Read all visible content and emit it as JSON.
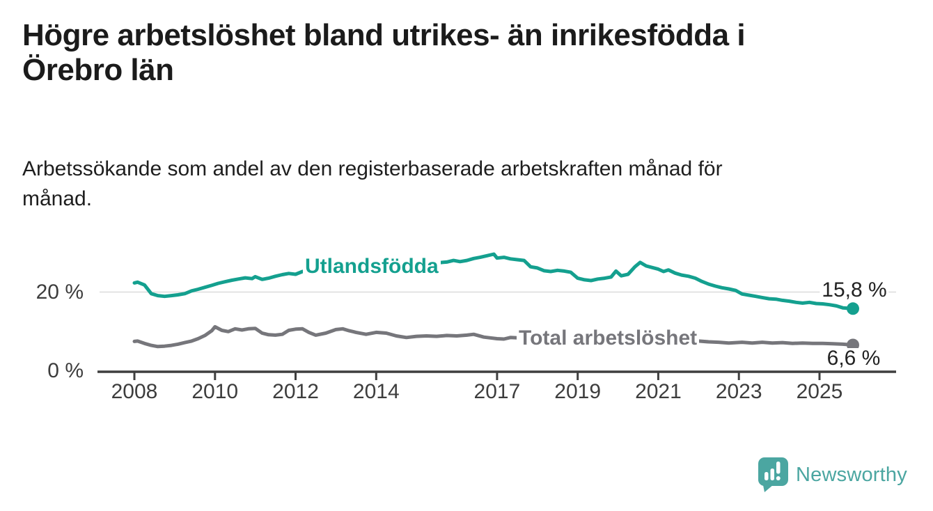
{
  "header": {
    "title": "Högre arbetslöshet bland utrikes- än inrikesfödda i Örebro län",
    "title_lines": [
      "Högre arbetslöshet bland utrikes- än inrikesfödda i",
      "Örebro län"
    ],
    "subtitle": "Arbetssökande som andel av den registerbaserade arbetskraften månad för månad.",
    "subtitle_lines": [
      "Arbetssökande som andel av den registerbaserade arbetskraften månad för",
      "månad."
    ]
  },
  "colors": {
    "accent_teal": "#14A08F",
    "series_gray": "#76767B",
    "axis": "#3F3F3F",
    "grid": "#DADADA",
    "text_dark": "#1B1B1B",
    "tick_text": "#3D3D3D",
    "brand_teal": "#4BA6A1"
  },
  "chart_data": {
    "type": "line",
    "title": "Högre arbetslöshet bland utrikes- än inrikesfödda i Örebro län",
    "subtitle": "Arbetssökande som andel av den registerbaserade arbetskraften månad för månad.",
    "unit": "%",
    "grid": "single horizontal gridline at 20 %",
    "legend_position": "inline labels on lines",
    "x_range": [
      2008,
      2025.9
    ],
    "y_range": [
      0,
      31
    ],
    "x_axis": {
      "ticks": [
        {
          "value": 2008,
          "label": "2008"
        },
        {
          "value": 2010,
          "label": "2010"
        },
        {
          "value": 2012,
          "label": "2012"
        },
        {
          "value": 2014,
          "label": "2014"
        },
        {
          "value": 2017,
          "label": "2017"
        },
        {
          "value": 2019,
          "label": "2019"
        },
        {
          "value": 2021,
          "label": "2021"
        },
        {
          "value": 2023,
          "label": "2023"
        },
        {
          "value": 2025,
          "label": "2025"
        }
      ]
    },
    "y_axis": {
      "ticks": [
        {
          "value": 0,
          "label": "0 %",
          "grid": false
        },
        {
          "value": 20,
          "label": "20 %",
          "grid": true
        }
      ]
    },
    "series": [
      {
        "id": "utlandsfodda",
        "name": "Utlandsfödda",
        "color": "#14A08F",
        "end_label": "15,8 %",
        "end_value": 15.8,
        "points": [
          [
            2008.0,
            22.3
          ],
          [
            2008.08,
            22.5
          ],
          [
            2008.25,
            21.8
          ],
          [
            2008.42,
            19.6
          ],
          [
            2008.58,
            19.1
          ],
          [
            2008.75,
            18.9
          ],
          [
            2008.92,
            19.1
          ],
          [
            2009.08,
            19.3
          ],
          [
            2009.25,
            19.6
          ],
          [
            2009.42,
            20.3
          ],
          [
            2009.58,
            20.7
          ],
          [
            2009.75,
            21.2
          ],
          [
            2009.92,
            21.7
          ],
          [
            2010.08,
            22.2
          ],
          [
            2010.25,
            22.6
          ],
          [
            2010.42,
            23.0
          ],
          [
            2010.58,
            23.3
          ],
          [
            2010.75,
            23.6
          ],
          [
            2010.92,
            23.4
          ],
          [
            2011.0,
            23.9
          ],
          [
            2011.17,
            23.2
          ],
          [
            2011.33,
            23.5
          ],
          [
            2011.5,
            24.0
          ],
          [
            2011.67,
            24.4
          ],
          [
            2011.83,
            24.7
          ],
          [
            2012.0,
            24.5
          ],
          [
            2012.17,
            25.2
          ],
          [
            2012.33,
            25.6
          ],
          [
            2012.5,
            25.9
          ],
          [
            2012.75,
            26.1
          ],
          [
            2013.0,
            26.3
          ],
          [
            2013.25,
            26.1
          ],
          [
            2013.5,
            26.5
          ],
          [
            2013.75,
            26.7
          ],
          [
            2014.0,
            26.9
          ],
          [
            2014.25,
            26.7
          ],
          [
            2014.5,
            27.0
          ],
          [
            2014.75,
            27.1
          ],
          [
            2015.0,
            27.0
          ],
          [
            2015.25,
            27.2
          ],
          [
            2015.5,
            27.4
          ],
          [
            2015.75,
            27.6
          ],
          [
            2015.92,
            28.0
          ],
          [
            2016.08,
            27.7
          ],
          [
            2016.25,
            28.0
          ],
          [
            2016.42,
            28.5
          ],
          [
            2016.58,
            28.8
          ],
          [
            2016.75,
            29.2
          ],
          [
            2016.92,
            29.6
          ],
          [
            2017.0,
            28.6
          ],
          [
            2017.17,
            28.8
          ],
          [
            2017.33,
            28.4
          ],
          [
            2017.5,
            28.2
          ],
          [
            2017.67,
            28.0
          ],
          [
            2017.83,
            26.4
          ],
          [
            2018.0,
            26.1
          ],
          [
            2018.17,
            25.4
          ],
          [
            2018.33,
            25.2
          ],
          [
            2018.5,
            25.5
          ],
          [
            2018.67,
            25.3
          ],
          [
            2018.83,
            25.0
          ],
          [
            2019.0,
            23.5
          ],
          [
            2019.17,
            23.1
          ],
          [
            2019.33,
            22.9
          ],
          [
            2019.5,
            23.3
          ],
          [
            2019.67,
            23.5
          ],
          [
            2019.83,
            23.8
          ],
          [
            2019.95,
            25.3
          ],
          [
            2020.08,
            24.1
          ],
          [
            2020.25,
            24.5
          ],
          [
            2020.42,
            26.4
          ],
          [
            2020.55,
            27.5
          ],
          [
            2020.7,
            26.6
          ],
          [
            2020.85,
            26.2
          ],
          [
            2021.0,
            25.8
          ],
          [
            2021.13,
            25.2
          ],
          [
            2021.25,
            25.6
          ],
          [
            2021.42,
            24.8
          ],
          [
            2021.58,
            24.3
          ],
          [
            2021.75,
            24.0
          ],
          [
            2021.92,
            23.5
          ],
          [
            2022.08,
            22.7
          ],
          [
            2022.25,
            22.0
          ],
          [
            2022.42,
            21.5
          ],
          [
            2022.58,
            21.1
          ],
          [
            2022.75,
            20.8
          ],
          [
            2022.92,
            20.4
          ],
          [
            2023.08,
            19.5
          ],
          [
            2023.25,
            19.2
          ],
          [
            2023.42,
            18.9
          ],
          [
            2023.58,
            18.6
          ],
          [
            2023.75,
            18.3
          ],
          [
            2023.92,
            18.2
          ],
          [
            2024.08,
            17.9
          ],
          [
            2024.25,
            17.7
          ],
          [
            2024.42,
            17.4
          ],
          [
            2024.58,
            17.2
          ],
          [
            2024.75,
            17.4
          ],
          [
            2024.92,
            17.1
          ],
          [
            2025.08,
            17.0
          ],
          [
            2025.25,
            16.8
          ],
          [
            2025.42,
            16.5
          ],
          [
            2025.58,
            16.0
          ],
          [
            2025.83,
            15.8
          ]
        ]
      },
      {
        "id": "total",
        "name": "Total arbetslöshet",
        "color": "#76767B",
        "end_label": "6,6 %",
        "end_value": 6.6,
        "points": [
          [
            2008.0,
            7.5
          ],
          [
            2008.08,
            7.6
          ],
          [
            2008.25,
            7.0
          ],
          [
            2008.42,
            6.5
          ],
          [
            2008.58,
            6.2
          ],
          [
            2008.75,
            6.3
          ],
          [
            2008.92,
            6.5
          ],
          [
            2009.08,
            6.8
          ],
          [
            2009.25,
            7.2
          ],
          [
            2009.42,
            7.6
          ],
          [
            2009.58,
            8.2
          ],
          [
            2009.75,
            9.0
          ],
          [
            2009.92,
            10.2
          ],
          [
            2010.0,
            11.2
          ],
          [
            2010.17,
            10.3
          ],
          [
            2010.33,
            10.0
          ],
          [
            2010.5,
            10.7
          ],
          [
            2010.67,
            10.4
          ],
          [
            2010.83,
            10.7
          ],
          [
            2011.0,
            10.8
          ],
          [
            2011.17,
            9.6
          ],
          [
            2011.33,
            9.2
          ],
          [
            2011.5,
            9.1
          ],
          [
            2011.67,
            9.3
          ],
          [
            2011.83,
            10.3
          ],
          [
            2012.0,
            10.6
          ],
          [
            2012.17,
            10.7
          ],
          [
            2012.33,
            9.8
          ],
          [
            2012.5,
            9.1
          ],
          [
            2012.75,
            9.6
          ],
          [
            2013.0,
            10.5
          ],
          [
            2013.17,
            10.7
          ],
          [
            2013.33,
            10.2
          ],
          [
            2013.5,
            9.8
          ],
          [
            2013.75,
            9.3
          ],
          [
            2014.0,
            9.8
          ],
          [
            2014.25,
            9.6
          ],
          [
            2014.5,
            8.9
          ],
          [
            2014.75,
            8.5
          ],
          [
            2015.0,
            8.8
          ],
          [
            2015.25,
            8.9
          ],
          [
            2015.5,
            8.8
          ],
          [
            2015.75,
            9.0
          ],
          [
            2016.0,
            8.9
          ],
          [
            2016.25,
            9.1
          ],
          [
            2016.42,
            9.3
          ],
          [
            2016.67,
            8.6
          ],
          [
            2016.83,
            8.4
          ],
          [
            2017.0,
            8.2
          ],
          [
            2017.17,
            8.1
          ],
          [
            2017.33,
            8.5
          ],
          [
            2017.5,
            8.4
          ],
          [
            2017.75,
            8.2
          ],
          [
            2018.0,
            8.1
          ],
          [
            2018.5,
            7.9
          ],
          [
            2019.0,
            7.7
          ],
          [
            2019.5,
            7.8
          ],
          [
            2020.0,
            8.1
          ],
          [
            2020.33,
            9.6
          ],
          [
            2020.58,
            9.4
          ],
          [
            2021.0,
            8.9
          ],
          [
            2021.5,
            8.2
          ],
          [
            2022.0,
            7.6
          ],
          [
            2022.25,
            7.4
          ],
          [
            2022.5,
            7.3
          ],
          [
            2022.75,
            7.1
          ],
          [
            2023.08,
            7.3
          ],
          [
            2023.33,
            7.1
          ],
          [
            2023.58,
            7.3
          ],
          [
            2023.83,
            7.1
          ],
          [
            2024.08,
            7.2
          ],
          [
            2024.33,
            7.0
          ],
          [
            2024.58,
            7.1
          ],
          [
            2024.83,
            7.0
          ],
          [
            2025.08,
            7.0
          ],
          [
            2025.33,
            6.9
          ],
          [
            2025.58,
            6.8
          ],
          [
            2025.83,
            6.6
          ]
        ]
      }
    ]
  },
  "branding": {
    "wordmark": "Newsworthy",
    "logo_icon": "newsworthy-speech-bubble-bar-chart-icon"
  }
}
